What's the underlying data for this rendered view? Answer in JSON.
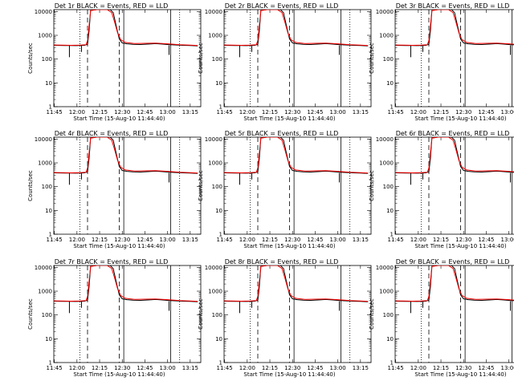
{
  "chart_data": {
    "type": "line",
    "layout": "3x3 grid",
    "y_scale": "log",
    "ylim": [
      1,
      12000
    ],
    "xlim": [
      "11:44:40",
      "13:22"
    ],
    "x_tick_labels": [
      "11:45",
      "12:00",
      "12:15",
      "12:30",
      "12:45",
      "13:00",
      "13:15"
    ],
    "y_tick_labels": [
      "1",
      "10",
      "100",
      "1000",
      "10000"
    ],
    "xlabel": "Start Time (15-Aug-10 11:44:40)",
    "ylabel": "Counts/sec",
    "series_colors": {
      "events": "#000000",
      "lld": "#ff0000"
    },
    "vertical_lines": [
      {
        "time": "12:02",
        "style": "dotted"
      },
      {
        "time": "12:07",
        "style": "dashed"
      },
      {
        "time": "12:28",
        "style": "dashed"
      },
      {
        "time": "12:31",
        "style": "solid"
      },
      {
        "time": "13:02",
        "style": "solid"
      },
      {
        "time": "13:08",
        "style": "dotted"
      }
    ],
    "panels": [
      {
        "title": "Det 1r BLACK = Events, RED = LLD"
      },
      {
        "title": "Det 2r BLACK = Events, RED = LLD"
      },
      {
        "title": "Det 3r BLACK = Events, RED = LLD"
      },
      {
        "title": "Det 4r BLACK = Events, RED = LLD"
      },
      {
        "title": "Det 5r BLACK = Events, RED = LLD"
      },
      {
        "title": "Det 6r BLACK = Events, RED = LLD"
      },
      {
        "title": "Det 7r BLACK = Events, RED = LLD"
      },
      {
        "title": "Det 8r BLACK = Events, RED = LLD"
      },
      {
        "title": "Det 9r BLACK = Events, RED = LLD"
      }
    ],
    "series": [
      {
        "key": "events",
        "points": [
          [
            "11:44:40",
            380
          ],
          [
            "11:48",
            375
          ],
          [
            "11:52",
            372
          ],
          [
            "11:56",
            370
          ],
          [
            "11:59",
            368
          ],
          [
            "12:02",
            372
          ],
          [
            "12:05",
            378
          ],
          [
            "12:07",
            420
          ],
          [
            "12:08",
            1500
          ],
          [
            "12:09",
            11000
          ],
          [
            "12:13",
            12000
          ],
          [
            "12:18",
            12000
          ],
          [
            "12:22",
            12000
          ],
          [
            "12:24",
            9000
          ],
          [
            "12:26",
            2500
          ],
          [
            "12:28",
            700
          ],
          [
            "12:30",
            480
          ],
          [
            "12:33",
            440
          ],
          [
            "12:37",
            420
          ],
          [
            "12:42",
            410
          ],
          [
            "12:48",
            430
          ],
          [
            "12:52",
            445
          ],
          [
            "12:56",
            430
          ],
          [
            "13:00",
            410
          ],
          [
            "13:02",
            400
          ],
          [
            "13:06",
            390
          ],
          [
            "13:10",
            380
          ],
          [
            "13:15",
            370
          ],
          [
            "13:20",
            360
          ]
        ],
        "dropouts": [
          [
            "11:55",
            120
          ],
          [
            "12:03",
            200
          ],
          [
            "13:01",
            150
          ]
        ]
      },
      {
        "key": "lld",
        "points": [
          [
            "11:44:40",
            390
          ],
          [
            "11:50",
            385
          ],
          [
            "11:56",
            380
          ],
          [
            "12:02",
            385
          ],
          [
            "12:06",
            400
          ],
          [
            "12:07",
            600
          ],
          [
            "12:08",
            2500
          ],
          [
            "12:09",
            11000
          ],
          [
            "12:13",
            12000
          ],
          [
            "12:20",
            12000
          ],
          [
            "12:23",
            9000
          ],
          [
            "12:25",
            3500
          ],
          [
            "12:27",
            1200
          ],
          [
            "12:29",
            650
          ],
          [
            "12:32",
            500
          ],
          [
            "12:38",
            450
          ],
          [
            "12:45",
            460
          ],
          [
            "12:52",
            470
          ],
          [
            "13:00",
            440
          ],
          [
            "13:08",
            400
          ],
          [
            "13:15",
            385
          ],
          [
            "13:20",
            370
          ]
        ]
      }
    ]
  }
}
